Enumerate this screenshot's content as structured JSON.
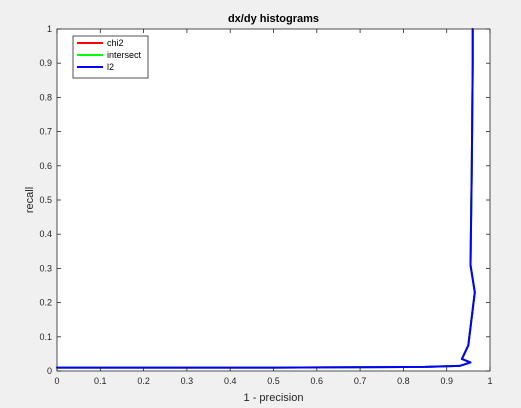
{
  "chart_data": {
    "type": "line",
    "title": "dx/dy histograms",
    "xlabel": "1 - precision",
    "ylabel": "recall",
    "xlim": [
      0,
      1
    ],
    "ylim": [
      0,
      1
    ],
    "x_ticks": [
      0,
      0.1,
      0.2,
      0.3,
      0.4,
      0.5,
      0.6,
      0.7,
      0.8,
      0.9,
      1
    ],
    "x_tick_labels": [
      "0",
      "0.1",
      "0.2",
      "0.3",
      "0.4",
      "0.5",
      "0.6",
      "0.7",
      "0.8",
      "0.9",
      "1"
    ],
    "y_ticks": [
      0,
      0.1,
      0.2,
      0.3,
      0.4,
      0.5,
      0.6,
      0.7,
      0.8,
      0.9,
      1
    ],
    "y_tick_labels": [
      "0",
      "0.1",
      "0.2",
      "0.3",
      "0.4",
      "0.5",
      "0.6",
      "0.7",
      "0.8",
      "0.9",
      "1"
    ],
    "grid": false,
    "legend_position": "top-left",
    "background_color": "#f0f0f0",
    "axes_color": "#ffffff",
    "series": [
      {
        "name": "chi2",
        "color": "#ff0000",
        "x": [
          0,
          0.5,
          0.85,
          0.93,
          0.955,
          0.935,
          0.95,
          0.965,
          0.955,
          0.958,
          0.96,
          0.96
        ],
        "y": [
          0.01,
          0.01,
          0.012,
          0.015,
          0.025,
          0.035,
          0.075,
          0.23,
          0.31,
          0.6,
          0.9,
          1.0
        ]
      },
      {
        "name": "intersect",
        "color": "#00ff00",
        "x": [
          0,
          0.5,
          0.85,
          0.93,
          0.955,
          0.935,
          0.95,
          0.965,
          0.955,
          0.958,
          0.96,
          0.96
        ],
        "y": [
          0.01,
          0.01,
          0.012,
          0.015,
          0.025,
          0.035,
          0.075,
          0.23,
          0.31,
          0.6,
          0.9,
          1.0
        ]
      },
      {
        "name": "l2",
        "color": "#0000ff",
        "x": [
          0,
          0.5,
          0.85,
          0.93,
          0.955,
          0.935,
          0.95,
          0.965,
          0.955,
          0.958,
          0.96,
          0.96
        ],
        "y": [
          0.01,
          0.01,
          0.012,
          0.015,
          0.025,
          0.035,
          0.075,
          0.23,
          0.31,
          0.6,
          0.9,
          1.0
        ]
      }
    ]
  }
}
